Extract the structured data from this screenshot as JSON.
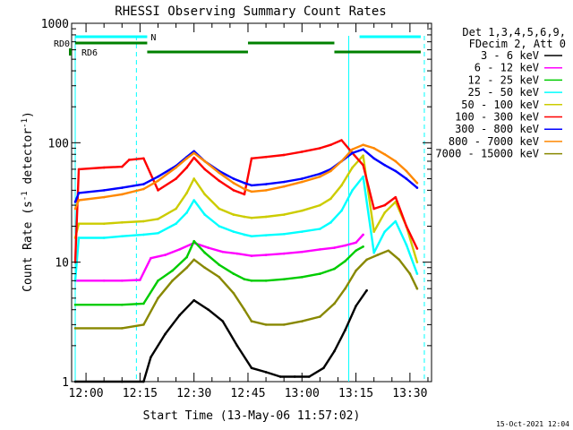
{
  "chart_data": {
    "type": "line",
    "title": "RHESSI Observing Summary Count Rates",
    "xlabel": "Start Time (13-May-06 11:57:02)",
    "ylabel_main": "Count Rate (s",
    "ylabel_sup1": "-1",
    "ylabel_mid": " detector",
    "ylabel_sup2": "-1",
    "ylabel_end": ")",
    "timestamp": "15-Oct-2021 12:04",
    "y_scale": "log",
    "xlim": [
      "11:56:00",
      "13:36:00"
    ],
    "ylim": [
      1,
      1000
    ],
    "x_ticks": [
      "12:00",
      "12:15",
      "12:30",
      "12:45",
      "13:00",
      "13:15",
      "13:30"
    ],
    "y_ticks": [
      {
        "v": 1,
        "label": "1"
      },
      {
        "v": 10,
        "label": "10"
      },
      {
        "v": 100,
        "label": "100"
      },
      {
        "v": 1000,
        "label": "1000"
      }
    ],
    "legend_header": [
      "Det 1,3,4,5,6,9,",
      "FDecim 2, Att 0"
    ],
    "legend_position": "right",
    "series": [
      {
        "name": "3 - 6 keV",
        "color": "#000000",
        "x": [
          "11:57",
          "12:10",
          "12:16",
          "12:18",
          "12:22",
          "12:26",
          "12:30",
          "12:34",
          "12:38",
          "12:42",
          "12:46",
          "12:50",
          "12:54",
          "12:58",
          "13:02",
          "13:06",
          "13:09",
          "13:12",
          "13:15",
          "13:18",
          "13:21",
          "13:24",
          "13:27"
        ],
        "values": [
          0.9,
          0.9,
          1.0,
          1.6,
          2.5,
          3.6,
          4.8,
          4.0,
          3.2,
          2.0,
          1.3,
          1.2,
          1.1,
          1.1,
          1.1,
          1.3,
          1.8,
          2.7,
          4.3,
          5.8,
          null,
          null,
          null
        ]
      },
      {
        "name": "6 - 12 keV",
        "color": "#ff00ff",
        "x": [
          "11:57",
          "12:05",
          "12:10",
          "12:15",
          "12:18",
          "12:22",
          "12:26",
          "12:30",
          "12:34",
          "12:38",
          "12:42",
          "12:46",
          "12:50",
          "12:55",
          "13:00",
          "13:05",
          "13:09",
          "13:12",
          "13:15",
          "13:17"
        ],
        "values": [
          7.0,
          7.0,
          7.0,
          7.1,
          10.8,
          11.5,
          12.8,
          14.5,
          13.2,
          12.2,
          11.8,
          11.3,
          11.5,
          11.8,
          12.2,
          12.8,
          13.2,
          13.8,
          14.6,
          17.0
        ]
      },
      {
        "name": "12 - 25 keV",
        "color": "#00cc00",
        "x": [
          "11:57",
          "12:10",
          "12:16",
          "12:20",
          "12:24",
          "12:28",
          "12:30",
          "12:33",
          "12:37",
          "12:41",
          "12:44",
          "12:46",
          "12:50",
          "12:55",
          "13:00",
          "13:05",
          "13:09",
          "13:12",
          "13:15",
          "13:17"
        ],
        "values": [
          4.4,
          4.4,
          4.5,
          7.0,
          8.5,
          11.0,
          15.0,
          12.0,
          9.5,
          8.0,
          7.2,
          7.0,
          7.0,
          7.2,
          7.5,
          8.0,
          8.8,
          10.2,
          12.5,
          13.5
        ]
      },
      {
        "name": "25 - 50 keV",
        "color": "#00ffff",
        "x": [
          "11:57",
          "11:58",
          "12:05",
          "12:10",
          "12:16",
          "12:20",
          "12:25",
          "12:28",
          "12:30",
          "12:33",
          "12:37",
          "12:41",
          "12:44",
          "12:46",
          "12:50",
          "12:55",
          "13:00",
          "13:05",
          "13:08",
          "13:11",
          "13:14",
          "13:17",
          "13:20",
          "13:23",
          "13:26",
          "13:29",
          "13:32"
        ],
        "values": [
          7.0,
          16.0,
          16.0,
          16.5,
          17.0,
          17.5,
          21.0,
          26.0,
          33.0,
          25.0,
          20.0,
          18.0,
          17.0,
          16.5,
          16.8,
          17.2,
          18.0,
          19.0,
          21.5,
          27.0,
          40.0,
          52.0,
          12.0,
          18.0,
          22.0,
          14.0,
          8.0
        ]
      },
      {
        "name": "50 - 100 keV",
        "color": "#cccc00",
        "x": [
          "11:57",
          "11:58",
          "12:05",
          "12:10",
          "12:16",
          "12:20",
          "12:25",
          "12:28",
          "12:30",
          "12:33",
          "12:37",
          "12:41",
          "12:44",
          "12:46",
          "12:50",
          "12:55",
          "13:00",
          "13:05",
          "13:08",
          "13:11",
          "13:14",
          "13:17",
          "13:20",
          "13:23",
          "13:26",
          "13:29",
          "13:32"
        ],
        "values": [
          16.0,
          21.0,
          21.0,
          21.5,
          22.0,
          23.0,
          28.0,
          38.0,
          50.0,
          37.0,
          28.0,
          25.0,
          24.0,
          23.5,
          24.0,
          25.0,
          27.0,
          30.0,
          34.0,
          44.0,
          62.0,
          78.0,
          18.0,
          26.0,
          32.0,
          20.0,
          10.0
        ]
      },
      {
        "name": "100 - 300 keV",
        "color": "#ff0000",
        "x": [
          "11:57",
          "11:58",
          "12:05",
          "12:10",
          "12:12",
          "12:16",
          "12:20",
          "12:25",
          "12:28",
          "12:30",
          "12:33",
          "12:37",
          "12:41",
          "12:44",
          "12:46",
          "12:50",
          "12:55",
          "13:00",
          "13:05",
          "13:08",
          "13:11",
          "13:14",
          "13:17",
          "13:20",
          "13:23",
          "13:26",
          "13:29",
          "13:32"
        ],
        "values": [
          10.0,
          60.0,
          62.0,
          63.0,
          72.0,
          74.0,
          40.0,
          50.0,
          62.0,
          75.0,
          60.0,
          48.0,
          40.0,
          37.0,
          74.0,
          76.0,
          79.0,
          84.0,
          90.0,
          96.0,
          105.0,
          82.0,
          65.0,
          28.0,
          30.0,
          35.0,
          20.0,
          13.0
        ]
      },
      {
        "name": "300 - 800 keV",
        "color": "#0000ff",
        "x": [
          "11:57",
          "11:58",
          "12:05",
          "12:10",
          "12:16",
          "12:20",
          "12:25",
          "12:28",
          "12:30",
          "12:33",
          "12:37",
          "12:41",
          "12:44",
          "12:46",
          "12:50",
          "12:55",
          "13:00",
          "13:05",
          "13:08",
          "13:11",
          "13:14",
          "13:17",
          "13:20",
          "13:23",
          "13:26",
          "13:29",
          "13:32"
        ],
        "values": [
          32.0,
          38.0,
          40.0,
          42.0,
          45.0,
          52.0,
          64.0,
          76.0,
          85.0,
          70.0,
          58.0,
          50.0,
          46.0,
          44.0,
          45.0,
          47.0,
          50.0,
          55.0,
          60.0,
          70.0,
          82.0,
          88.0,
          74.0,
          65.0,
          58.0,
          50.0,
          42.0
        ]
      },
      {
        "name": "800 - 7000 keV",
        "color": "#ff8800",
        "x": [
          "11:57",
          "11:58",
          "12:05",
          "12:10",
          "12:16",
          "12:20",
          "12:25",
          "12:28",
          "12:30",
          "12:33",
          "12:37",
          "12:41",
          "12:44",
          "12:46",
          "12:50",
          "12:55",
          "13:00",
          "13:05",
          "13:08",
          "13:11",
          "13:14",
          "13:17",
          "13:20",
          "13:23",
          "13:26",
          "13:29",
          "13:32"
        ],
        "values": [
          28.0,
          33.0,
          35.0,
          37.0,
          41.0,
          48.0,
          62.0,
          74.0,
          82.0,
          70.0,
          56.0,
          46.0,
          41.0,
          39.0,
          40.0,
          43.0,
          47.0,
          52.0,
          58.0,
          70.0,
          88.0,
          96.0,
          90.0,
          80.0,
          70.0,
          58.0,
          46.0
        ]
      },
      {
        "name": "7000 - 15000 keV",
        "color": "#888800",
        "x": [
          "11:57",
          "12:10",
          "12:16",
          "12:20",
          "12:24",
          "12:28",
          "12:30",
          "12:33",
          "12:37",
          "12:41",
          "12:44",
          "12:46",
          "12:50",
          "12:55",
          "13:00",
          "13:05",
          "13:09",
          "13:12",
          "13:15",
          "13:18",
          "13:21",
          "13:24",
          "13:27",
          "13:30",
          "13:32"
        ],
        "values": [
          2.8,
          2.8,
          3.0,
          5.0,
          7.0,
          9.0,
          10.5,
          9.0,
          7.5,
          5.5,
          4.0,
          3.2,
          3.0,
          3.0,
          3.2,
          3.5,
          4.5,
          6.0,
          8.5,
          10.5,
          11.5,
          12.5,
          10.5,
          8.0,
          6.0
        ]
      }
    ],
    "state_bars": [
      {
        "label": "N",
        "color": "#00ffff",
        "level": "top",
        "from": "11:57",
        "to": "12:17"
      },
      {
        "label": "",
        "color": "#00ffff",
        "level": "top",
        "from": "13:16",
        "to": "13:33"
      },
      {
        "label": "RD0",
        "color": "#008000",
        "level": "middle",
        "from": "11:57",
        "to": "12:17"
      },
      {
        "label": "",
        "color": "#008000",
        "level": "middle",
        "from": "12:45",
        "to": "13:09"
      },
      {
        "label": "RD6",
        "color": "#008000",
        "level": "lower",
        "from": "12:17",
        "to": "12:45"
      },
      {
        "label": "",
        "color": "#008000",
        "level": "lower",
        "from": "13:09",
        "to": "13:33"
      }
    ],
    "cyan_vlines": [
      {
        "t": "11:57",
        "style": "solid"
      },
      {
        "t": "12:14",
        "style": "dashed"
      },
      {
        "t": "13:13",
        "style": "solid"
      },
      {
        "t": "13:34",
        "style": "dashed"
      }
    ]
  }
}
